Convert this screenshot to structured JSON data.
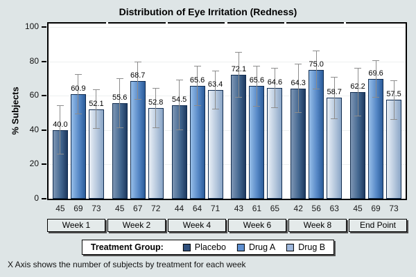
{
  "chart_data": {
    "type": "bar",
    "title": "Distribution of Eye Irritation (Redness)",
    "ylabel": "% Subjects",
    "xlabel": "",
    "footnote": "X Axis shows the number of subjects by treatment for each week",
    "legend_title": "Treatment Group:",
    "legend_position": "bottom",
    "categories": [
      "Week 1",
      "Week 2",
      "Week 4",
      "Week 6",
      "Week 8",
      "End Point"
    ],
    "ylim": [
      0,
      100
    ],
    "yticks": [
      0,
      20,
      40,
      60,
      80,
      100
    ],
    "grid": true,
    "error_bars": "95% confidence interval computed from value and subject count",
    "bar_value_labels_decimals": 1,
    "series": [
      {
        "name": "Placebo",
        "values": [
          40.0,
          55.6,
          54.5,
          72.1,
          64.3,
          62.2
        ],
        "n": [
          45,
          45,
          44,
          43,
          42,
          45
        ],
        "gradient": [
          "#7e96b4",
          "#42668f",
          "#1e3a60"
        ],
        "outline": "#102b4e",
        "legend_swatch": "#2f4f7c"
      },
      {
        "name": "Drug A",
        "values": [
          60.9,
          68.7,
          65.6,
          65.6,
          75.0,
          69.6
        ],
        "n": [
          69,
          67,
          64,
          61,
          56,
          69
        ],
        "gradient": [
          "#97bee9",
          "#5688c6",
          "#2b5c9a"
        ],
        "outline": "#102b4e",
        "legend_swatch": "#5e8fd0"
      },
      {
        "name": "Drug B",
        "values": [
          52.1,
          52.8,
          63.4,
          64.6,
          58.7,
          57.5
        ],
        "n": [
          73,
          72,
          71,
          65,
          63,
          73
        ],
        "gradient": [
          "#e9eff6",
          "#b6c8dd",
          "#8aa5c6"
        ],
        "outline": "#102b4e",
        "legend_swatch": "#9fb8dd"
      }
    ]
  },
  "colors": {
    "page_background": "#dee5e6",
    "plot_background": "#ffffff",
    "frame": "#000000",
    "gridline": "#edf0f0",
    "error_bar": "#8c8c8c",
    "week_box_fill": "#e4eaea",
    "legend_background": "#ffffff",
    "shadow": "#4d4d4d"
  }
}
